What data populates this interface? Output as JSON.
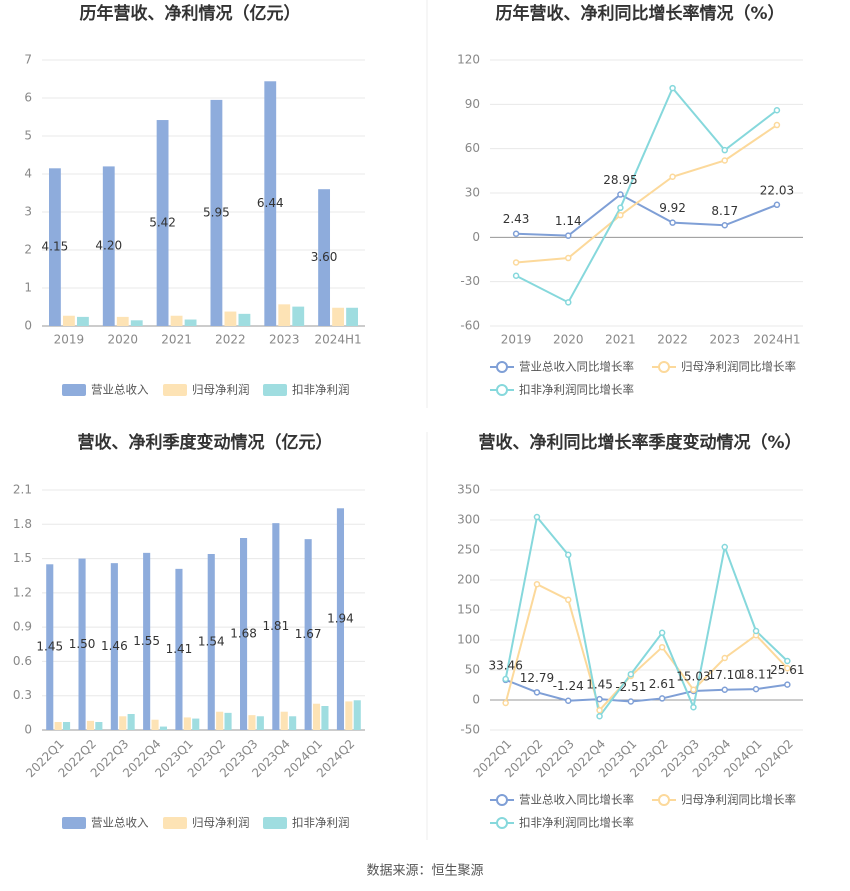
{
  "chart_data": [
    {
      "type": "bar",
      "title": "历年营收、净利情况（亿元）",
      "categories": [
        "2019",
        "2020",
        "2021",
        "2022",
        "2023",
        "2024H1"
      ],
      "ylim": [
        0,
        7
      ],
      "yticks": [
        0,
        1,
        2,
        3,
        4,
        5,
        6,
        7
      ],
      "grid": true,
      "series": [
        {
          "name": "营业总收入",
          "color": "#8eacdc",
          "labels": true,
          "values": [
            4.15,
            4.2,
            5.42,
            5.95,
            6.44,
            3.6
          ],
          "value_labels": [
            "4.15",
            "4.20",
            "5.42",
            "5.95",
            "6.44",
            "3.60"
          ]
        },
        {
          "name": "归母净利润",
          "color": "#fde3b5",
          "values": [
            0.27,
            0.24,
            0.27,
            0.38,
            0.57,
            0.48
          ]
        },
        {
          "name": "扣非净利润",
          "color": "#9fdde0",
          "values": [
            0.24,
            0.15,
            0.17,
            0.32,
            0.51,
            0.48
          ]
        }
      ]
    },
    {
      "type": "line",
      "title": "历年营收、净利同比增长率情况（%）",
      "categories": [
        "2019",
        "2020",
        "2021",
        "2022",
        "2023",
        "2024H1"
      ],
      "ylim": [
        -60,
        120
      ],
      "yticks": [
        -60,
        -30,
        0,
        30,
        60,
        90,
        120
      ],
      "grid": true,
      "series": [
        {
          "name": "营业总收入同比增长率",
          "color": "#7f9fd6",
          "labels": true,
          "values": [
            2.43,
            1.14,
            28.95,
            9.92,
            8.17,
            22.03
          ]
        },
        {
          "name": "归母净利润同比增长率",
          "color": "#fcd99b",
          "values": [
            -17,
            -14,
            15,
            41,
            52,
            76
          ]
        },
        {
          "name": "扣非净利润同比增长率",
          "color": "#86d8dc",
          "values": [
            -26,
            -44,
            20,
            101,
            59,
            86
          ]
        }
      ]
    },
    {
      "type": "bar",
      "title": "营收、净利季度变动情况（亿元）",
      "categories": [
        "2022Q1",
        "2022Q2",
        "2022Q3",
        "2022Q4",
        "2023Q1",
        "2023Q2",
        "2023Q3",
        "2023Q4",
        "2024Q1",
        "2024Q2"
      ],
      "ylim": [
        0,
        2.1
      ],
      "yticks": [
        0,
        0.3,
        0.6,
        0.9,
        1.2,
        1.5,
        1.8,
        2.1
      ],
      "grid": true,
      "series": [
        {
          "name": "营业总收入",
          "color": "#8eacdc",
          "labels": true,
          "values": [
            1.45,
            1.5,
            1.46,
            1.55,
            1.41,
            1.54,
            1.68,
            1.81,
            1.67,
            1.94
          ],
          "value_labels": [
            "1.45",
            "1.50",
            "1.46",
            "1.55",
            "1.41",
            "1.54",
            "1.68",
            "1.81",
            "1.67",
            "1.94"
          ]
        },
        {
          "name": "归母净利润",
          "color": "#fde3b5",
          "values": [
            0.07,
            0.08,
            0.12,
            0.09,
            0.11,
            0.16,
            0.13,
            0.16,
            0.23,
            0.25
          ]
        },
        {
          "name": "扣非净利润",
          "color": "#9fdde0",
          "values": [
            0.07,
            0.07,
            0.14,
            0.03,
            0.1,
            0.15,
            0.12,
            0.12,
            0.21,
            0.26
          ]
        }
      ]
    },
    {
      "type": "line",
      "title": "营收、净利同比增长率季度变动情况（%）",
      "categories": [
        "2022Q1",
        "2022Q2",
        "2022Q3",
        "2022Q4",
        "2023Q1",
        "2023Q2",
        "2023Q3",
        "2023Q4",
        "2024Q1",
        "2024Q2"
      ],
      "ylim": [
        -50,
        350
      ],
      "yticks": [
        -50,
        0,
        50,
        100,
        150,
        200,
        250,
        300,
        350
      ],
      "grid": true,
      "series": [
        {
          "name": "营业总收入同比增长率",
          "color": "#7f9fd6",
          "labels": true,
          "values": [
            33.46,
            12.79,
            -1.24,
            1.45,
            -2.51,
            2.61,
            15.03,
            17.1,
            18.11,
            25.61
          ],
          "value_labels": [
            "33.46",
            "12.79",
            "-1.24",
            "1.45",
            "-2.51",
            "2.61",
            "15.03",
            "17.10",
            "18.11",
            "25.61"
          ]
        },
        {
          "name": "归母净利润同比增长率",
          "color": "#fcd99b",
          "values": [
            -5,
            193,
            167,
            -17,
            40,
            88,
            17,
            70,
            108,
            53
          ]
        },
        {
          "name": "扣非净利润同比增长率",
          "color": "#86d8dc",
          "values": [
            35,
            305,
            242,
            -27,
            43,
            112,
            -12,
            255,
            115,
            65
          ]
        }
      ]
    }
  ],
  "source": "数据来源：恒生聚源"
}
